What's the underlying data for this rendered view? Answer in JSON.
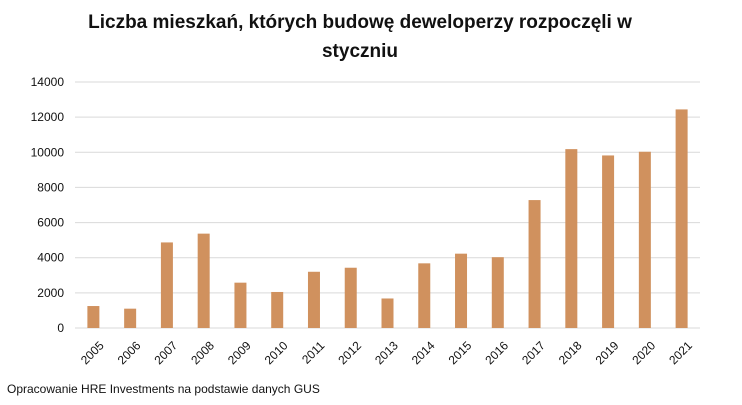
{
  "chart_data": {
    "type": "bar",
    "title_line1": "Liczba mieszkań, których budowę deweloperzy rozpoczęli w",
    "title_line2": "styczniu",
    "categories": [
      "2005",
      "2006",
      "2007",
      "2008",
      "2009",
      "2010",
      "2011",
      "2012",
      "2013",
      "2014",
      "2015",
      "2016",
      "2017",
      "2018",
      "2019",
      "2020",
      "2021"
    ],
    "values": [
      1250,
      1100,
      4870,
      5370,
      2580,
      2050,
      3200,
      3430,
      1680,
      3680,
      4230,
      4030,
      7280,
      10180,
      9820,
      10030,
      12440
    ],
    "ylim": [
      0,
      14000
    ],
    "yticks": [
      0,
      2000,
      4000,
      6000,
      8000,
      10000,
      12000,
      14000
    ],
    "xlabel": "",
    "ylabel": "",
    "grid": true,
    "bar_color": "#D0915E",
    "grid_color": "#D9D9D9",
    "source": "Opracowanie HRE Investments na podstawie danych GUS"
  }
}
